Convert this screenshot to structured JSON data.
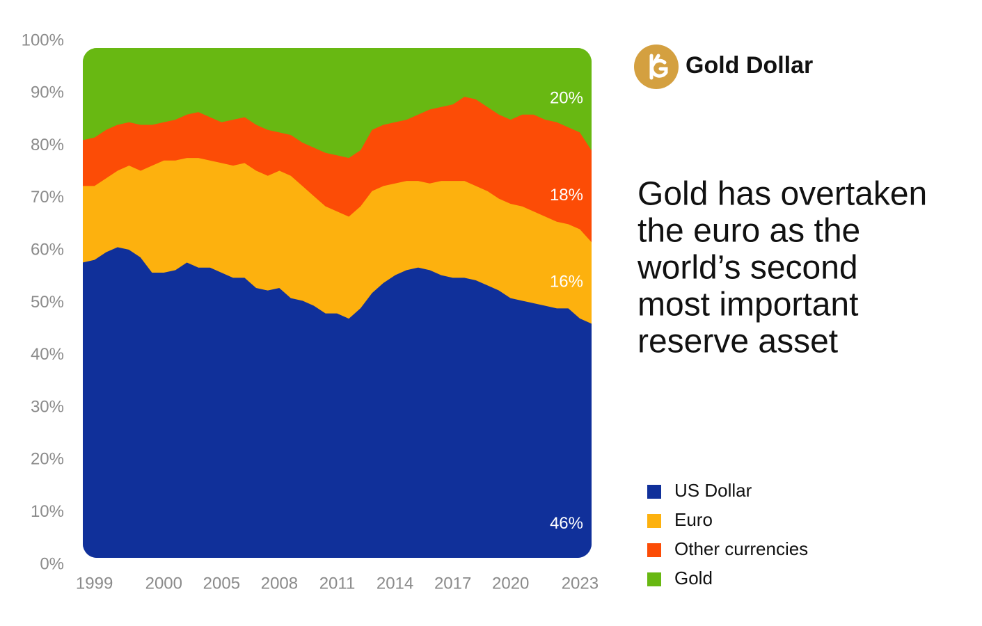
{
  "chart_data": {
    "type": "stacked_area",
    "brand": "Gold Dollar",
    "headline": [
      "Gold has overtaken",
      "the euro as the",
      "world’s second",
      "most important",
      "reserve asset"
    ],
    "categories": [
      null,
      "1999",
      null,
      null,
      null,
      null,
      null,
      "2000",
      null,
      null,
      null,
      null,
      "2005",
      null,
      null,
      null,
      null,
      "2008",
      null,
      null,
      null,
      null,
      "2011",
      null,
      null,
      null,
      null,
      "2014",
      null,
      null,
      null,
      null,
      "2017",
      null,
      null,
      null,
      null,
      "2020",
      null,
      null,
      null,
      null,
      null,
      "2023",
      null
    ],
    "ylim": [
      0,
      100
    ],
    "yticks": [
      {
        "value": 0,
        "label": "0%"
      },
      {
        "value": 10,
        "label": "10%"
      },
      {
        "value": 20,
        "label": "20%"
      },
      {
        "value": 30,
        "label": "30%"
      },
      {
        "value": 40,
        "label": "40%"
      },
      {
        "value": 50,
        "label": "50%"
      },
      {
        "value": 60,
        "label": "60%"
      },
      {
        "value": 70,
        "label": "70%"
      },
      {
        "value": 80,
        "label": "80%"
      },
      {
        "value": 90,
        "label": "90%"
      },
      {
        "value": 100,
        "label": "100%"
      }
    ],
    "series": [
      {
        "name": "US Dollar",
        "color": "#10309a",
        "label": "46%",
        "values": [
          58,
          58.5,
          60,
          61,
          60.5,
          59,
          56,
          56,
          56.5,
          58,
          57,
          57,
          56,
          55,
          55,
          53,
          52.5,
          53,
          51,
          50.5,
          49.5,
          48,
          48,
          47,
          49,
          52,
          54,
          55.5,
          56.5,
          57,
          56.5,
          55.5,
          55,
          55,
          54.5,
          53.5,
          52.5,
          51,
          50.5,
          50,
          49.5,
          49,
          49,
          47,
          46
        ]
      },
      {
        "name": "Euro",
        "color": "#fdb10e",
        "label": "16%",
        "values": [
          15,
          14.5,
          14.5,
          15,
          16.5,
          17,
          21,
          22,
          21.5,
          20.5,
          21.5,
          21,
          21.5,
          22,
          22.5,
          23,
          22.5,
          23,
          24,
          22.5,
          21.5,
          21,
          20,
          20,
          20,
          20,
          19,
          18,
          17.5,
          17,
          17,
          18.5,
          19,
          19,
          18.5,
          18.5,
          18,
          18.5,
          18.5,
          18,
          17.5,
          17,
          16.5,
          17.5,
          16
        ]
      },
      {
        "name": "Other currencies",
        "color": "#fc4c06",
        "label": "18%",
        "values": [
          9,
          9.5,
          9.5,
          9,
          8.5,
          9,
          8,
          7.5,
          8,
          8.5,
          9,
          8.5,
          8,
          9,
          9,
          9,
          9,
          7.5,
          8,
          8.5,
          9.5,
          10.5,
          11,
          11.5,
          11,
          12,
          12,
          12,
          12,
          13,
          14.5,
          14.5,
          15,
          16.5,
          17,
          16.5,
          16.5,
          16.5,
          18,
          19,
          19,
          19.5,
          19,
          19,
          18
        ]
      },
      {
        "name": "Gold",
        "color": "#68b812",
        "label": "20%",
        "values": [
          18,
          17.5,
          16,
          15,
          14.5,
          15,
          15,
          14.5,
          14,
          13,
          12.5,
          13.5,
          14.5,
          14,
          13.5,
          15,
          16,
          16.5,
          17,
          18.5,
          19.5,
          20.5,
          21,
          21.5,
          20,
          16,
          15,
          14.5,
          14,
          13,
          12,
          11.5,
          11,
          9.5,
          10,
          11.5,
          13,
          14,
          13,
          13,
          14,
          14.5,
          15.5,
          16.5,
          20
        ]
      }
    ]
  }
}
